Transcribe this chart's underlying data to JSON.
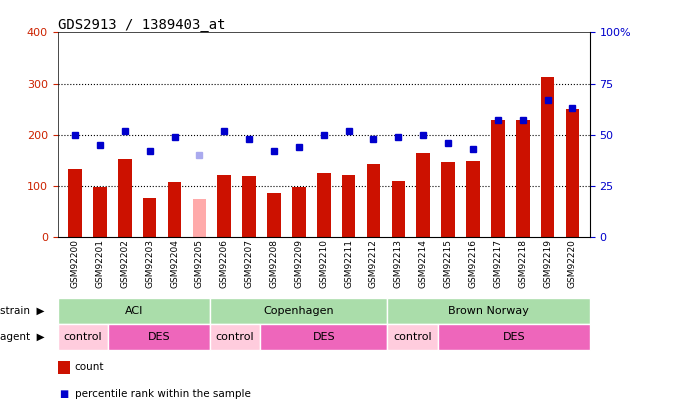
{
  "title": "GDS2913 / 1389403_at",
  "samples": [
    "GSM92200",
    "GSM92201",
    "GSM92202",
    "GSM92203",
    "GSM92204",
    "GSM92205",
    "GSM92206",
    "GSM92207",
    "GSM92208",
    "GSM92209",
    "GSM92210",
    "GSM92211",
    "GSM92212",
    "GSM92213",
    "GSM92214",
    "GSM92215",
    "GSM92216",
    "GSM92217",
    "GSM92218",
    "GSM92219",
    "GSM92220"
  ],
  "count_values": [
    133,
    97,
    153,
    76,
    108,
    75,
    122,
    120,
    85,
    98,
    125,
    122,
    143,
    109,
    165,
    147,
    148,
    228,
    228,
    313,
    250
  ],
  "count_absent": [
    false,
    false,
    false,
    false,
    false,
    true,
    false,
    false,
    false,
    false,
    false,
    false,
    false,
    false,
    false,
    false,
    false,
    false,
    false,
    false,
    false
  ],
  "rank_values": [
    50,
    45,
    52,
    42,
    49,
    40,
    52,
    48,
    42,
    44,
    50,
    52,
    48,
    49,
    50,
    46,
    43,
    57,
    57,
    67,
    63
  ],
  "rank_absent": [
    false,
    false,
    false,
    false,
    false,
    true,
    false,
    false,
    false,
    false,
    false,
    false,
    false,
    false,
    false,
    false,
    false,
    false,
    false,
    false,
    false
  ],
  "ylim_left": [
    0,
    400
  ],
  "ylim_right": [
    0,
    100
  ],
  "yticks_left": [
    0,
    100,
    200,
    300,
    400
  ],
  "yticks_right": [
    0,
    25,
    50,
    75,
    100
  ],
  "ytick_labels_right": [
    "0",
    "25",
    "50",
    "75",
    "100%"
  ],
  "grid_values": [
    100,
    200,
    300
  ],
  "strain_groups": [
    {
      "label": "ACI",
      "start": 0,
      "end": 6,
      "color": "#aaddaa"
    },
    {
      "label": "Copenhagen",
      "start": 6,
      "end": 13,
      "color": "#aaddaa"
    },
    {
      "label": "Brown Norway",
      "start": 13,
      "end": 21,
      "color": "#aaddaa"
    }
  ],
  "agent_groups": [
    {
      "label": "control",
      "start": 0,
      "end": 2,
      "color": "#ffccdd"
    },
    {
      "label": "DES",
      "start": 2,
      "end": 6,
      "color": "#ee66bb"
    },
    {
      "label": "control",
      "start": 6,
      "end": 8,
      "color": "#ffccdd"
    },
    {
      "label": "DES",
      "start": 8,
      "end": 13,
      "color": "#ee66bb"
    },
    {
      "label": "control",
      "start": 13,
      "end": 15,
      "color": "#ffccdd"
    },
    {
      "label": "DES",
      "start": 15,
      "end": 21,
      "color": "#ee66bb"
    }
  ],
  "bar_color": "#cc1100",
  "bar_absent_color": "#ffaaaa",
  "rank_color": "#0000cc",
  "rank_absent_color": "#aaaaee",
  "bar_width": 0.55,
  "background_color": "#ffffff",
  "title_fontsize": 10,
  "axis_label_color_left": "#cc2200",
  "axis_label_color_right": "#0000cc"
}
